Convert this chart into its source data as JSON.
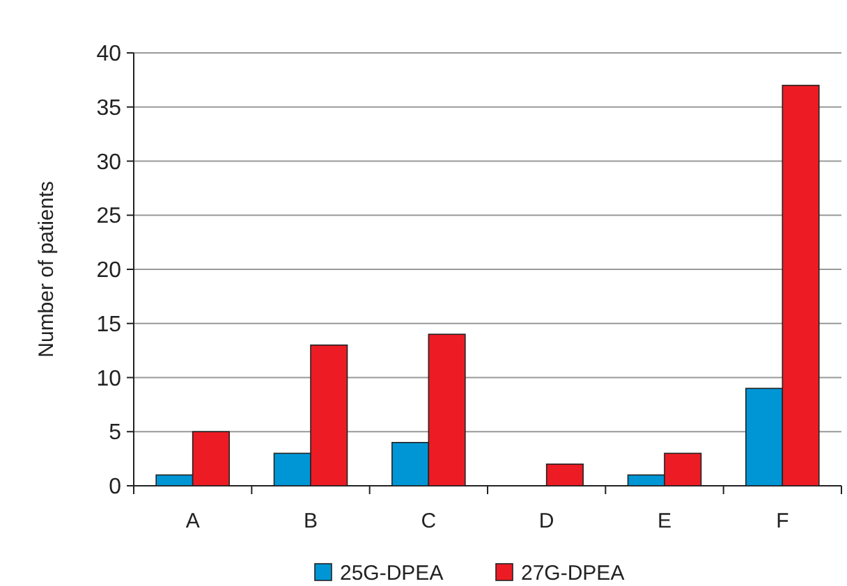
{
  "chart_data": {
    "type": "bar",
    "ylabel": "Number of patients",
    "categories": [
      "A",
      "B",
      "C",
      "D",
      "E",
      "F"
    ],
    "series": [
      {
        "name": "25G-DPEA",
        "color": "#0096d6",
        "values": [
          1,
          3,
          4,
          0,
          1,
          9
        ]
      },
      {
        "name": "27G-DPEA",
        "color": "#ed1c24",
        "values": [
          5,
          13,
          14,
          2,
          3,
          37
        ]
      }
    ],
    "ylim": [
      0,
      40
    ],
    "yticks": [
      0,
      5,
      10,
      15,
      20,
      25,
      30,
      35,
      40
    ],
    "grid": "y",
    "legend": "bottom"
  }
}
